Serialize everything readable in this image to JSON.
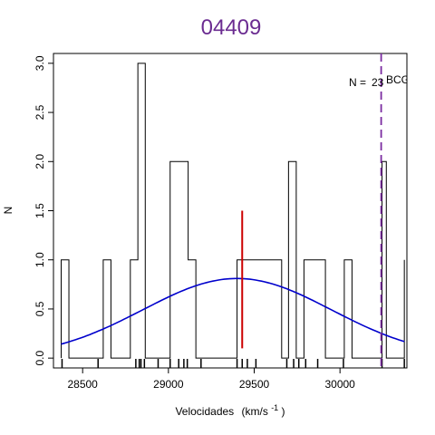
{
  "chart_data": {
    "type": "histogram",
    "title": "04409",
    "xlabel": "Velocidades",
    "xlabel_units_prefix": "(km/s",
    "xlabel_units_exp": "-1",
    "xlabel_units_suffix": ")",
    "ylabel": "N",
    "xlim": [
      28330,
      30390
    ],
    "ylim": [
      -0.1,
      3.1
    ],
    "xticks": [
      28500,
      29000,
      29500,
      30000
    ],
    "xtick_labels": [
      "28500",
      "29000",
      "29500",
      "30000"
    ],
    "yticks": [
      0.0,
      0.5,
      1.0,
      1.5,
      2.0,
      2.5,
      3.0
    ],
    "ytick_labels": [
      "0.0",
      "0.5",
      "1.0",
      "1.5",
      "2.0",
      "2.5",
      "3.0"
    ],
    "histogram_bins": [
      {
        "x0": 28375,
        "x1": 28420,
        "count": 1
      },
      {
        "x0": 28420,
        "x1": 28620,
        "count": 0
      },
      {
        "x0": 28620,
        "x1": 28665,
        "count": 1
      },
      {
        "x0": 28665,
        "x1": 28778,
        "count": 0
      },
      {
        "x0": 28778,
        "x1": 28822,
        "count": 1
      },
      {
        "x0": 28822,
        "x1": 28865,
        "count": 3
      },
      {
        "x0": 28865,
        "x1": 29010,
        "count": 0
      },
      {
        "x0": 29010,
        "x1": 29115,
        "count": 2
      },
      {
        "x0": 29115,
        "x1": 29160,
        "count": 1
      },
      {
        "x0": 29160,
        "x1": 29400,
        "count": 0
      },
      {
        "x0": 29400,
        "x1": 29570,
        "count": 1
      },
      {
        "x0": 29570,
        "x1": 29660,
        "count": 1
      },
      {
        "x0": 29660,
        "x1": 29700,
        "count": 0
      },
      {
        "x0": 29700,
        "x1": 29745,
        "count": 2
      },
      {
        "x0": 29745,
        "x1": 29790,
        "count": 0
      },
      {
        "x0": 29790,
        "x1": 29915,
        "count": 1
      },
      {
        "x0": 29915,
        "x1": 30025,
        "count": 0
      },
      {
        "x0": 30025,
        "x1": 30070,
        "count": 1
      },
      {
        "x0": 30070,
        "x1": 30245,
        "count": 0
      },
      {
        "x0": 30245,
        "x1": 30270,
        "count": 2
      },
      {
        "x0": 30270,
        "x1": 30375,
        "count": 0
      }
    ],
    "histogram_right_edge": {
      "x": 30375,
      "count": 1
    },
    "rug_ticks": [
      28380,
      28590,
      28810,
      28830,
      28840,
      28860,
      28940,
      29010,
      29060,
      29090,
      29110,
      29190,
      29400,
      29430,
      29460,
      29510,
      29690,
      29730,
      29760,
      29800,
      29870,
      30020,
      30245,
      30375
    ],
    "gaussian_fit": {
      "mean": 29400,
      "sigma": 550,
      "amplitude": 0.81,
      "x_range": [
        28375,
        30375
      ],
      "color": "#0000cc"
    },
    "mean_line": {
      "x": 29430,
      "y0": 0.1,
      "y1": 1.5,
      "color": "#cc0000"
    },
    "bcg_line": {
      "x": 30240,
      "color": "#7b2ca0",
      "label": "BCG"
    },
    "n_label": "N =",
    "n_value": "23",
    "colors": {
      "title": "#6b2c91",
      "histogram": "#000000"
    }
  }
}
